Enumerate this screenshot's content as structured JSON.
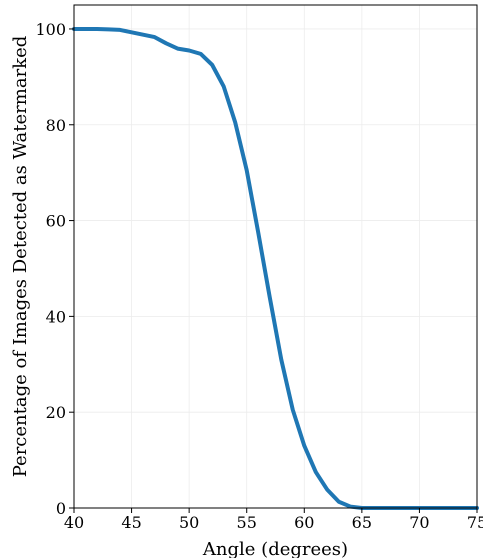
{
  "chart_data": {
    "type": "line",
    "xlabel": "Angle (degrees)",
    "ylabel": "Percentage of Images Detected as Watermarked",
    "xlim": [
      40,
      75
    ],
    "ylim": [
      0,
      105
    ],
    "x_ticks": [
      "40",
      "45",
      "50",
      "55",
      "60",
      "65",
      "70",
      "75"
    ],
    "y_ticks": [
      "0",
      "20",
      "40",
      "60",
      "80",
      "100"
    ],
    "grid": true,
    "series": [
      {
        "color": "#1f77b4",
        "x": [
          40,
          41,
          42,
          43,
          44,
          45,
          46,
          47,
          48,
          49,
          50,
          51,
          52,
          53,
          54,
          55,
          56,
          57,
          58,
          59,
          60,
          61,
          62,
          63,
          64,
          65,
          66,
          67,
          68,
          69,
          70,
          71,
          72,
          73,
          74,
          75
        ],
        "y": [
          100,
          100,
          100,
          99.9,
          99.8,
          99.3,
          98.8,
          98.3,
          97,
          95.9,
          95.5,
          94.8,
          92.5,
          88,
          80.5,
          70.5,
          57.5,
          44,
          31,
          20.5,
          13,
          7.5,
          3.8,
          1.3,
          0.3,
          0,
          0,
          0,
          0,
          0,
          0,
          0,
          0,
          0,
          0,
          0
        ]
      }
    ]
  }
}
